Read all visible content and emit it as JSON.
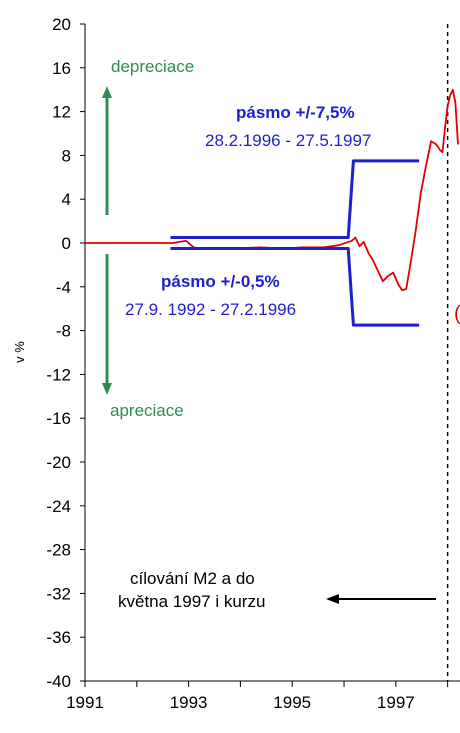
{
  "chart_data": {
    "type": "line",
    "title": "",
    "xlabel": "",
    "ylabel": "v %",
    "xlim": [
      1991,
      1998.2
    ],
    "ylim": [
      -40,
      20
    ],
    "xticks": [
      1991,
      1993,
      1995,
      1997
    ],
    "xtick_labels": [
      "1991",
      "1993",
      "1995",
      "1997"
    ],
    "yticks": [
      20,
      16,
      12,
      8,
      4,
      0,
      -4,
      -8,
      -12,
      -16,
      -20,
      -24,
      -28,
      -32,
      -36,
      -40
    ],
    "ytick_labels": [
      "20",
      "16",
      "12",
      "8",
      "4",
      "0",
      "-4",
      "-8",
      "-12",
      "-16",
      "-20",
      "-24",
      "-28",
      "-32",
      "-36",
      "-40"
    ],
    "grid": false,
    "series": [
      {
        "color": "#e00000",
        "points": [
          [
            1991.0,
            0.0
          ],
          [
            1992.7,
            0.0
          ],
          [
            1992.95,
            0.2
          ],
          [
            1993.1,
            -0.4
          ],
          [
            1993.2,
            -0.5
          ],
          [
            1993.8,
            -0.5
          ],
          [
            1994.4,
            -0.4
          ],
          [
            1994.8,
            -0.5
          ],
          [
            1995.2,
            -0.4
          ],
          [
            1995.6,
            -0.4
          ],
          [
            1995.9,
            -0.2
          ],
          [
            1996.15,
            0.2
          ],
          [
            1996.22,
            0.5
          ],
          [
            1996.3,
            -0.3
          ],
          [
            1996.38,
            0.1
          ],
          [
            1996.48,
            -1.0
          ],
          [
            1996.55,
            -1.5
          ],
          [
            1996.65,
            -2.5
          ],
          [
            1996.75,
            -3.5
          ],
          [
            1996.85,
            -3.0
          ],
          [
            1996.95,
            -2.7
          ],
          [
            1997.05,
            -3.8
          ],
          [
            1997.12,
            -4.3
          ],
          [
            1997.2,
            -4.2
          ],
          [
            1997.28,
            -2.0
          ],
          [
            1997.38,
            1.0
          ],
          [
            1997.48,
            4.5
          ],
          [
            1997.58,
            7.0
          ],
          [
            1997.68,
            9.3
          ],
          [
            1997.78,
            9.0
          ],
          [
            1997.85,
            8.5
          ],
          [
            1997.9,
            8.3
          ],
          [
            1997.95,
            10.5
          ],
          [
            1998.0,
            12.5
          ],
          [
            1998.05,
            13.5
          ],
          [
            1998.1,
            14.0
          ],
          [
            1998.15,
            12.8
          ],
          [
            1998.2,
            9.0
          ]
        ]
      },
      {
        "color": "#1f1fd0",
        "points": [
          [
            1992.65,
            0.5
          ],
          [
            1996.08,
            0.5
          ],
          [
            1996.18,
            7.5
          ],
          [
            1997.45,
            7.5
          ]
        ]
      },
      {
        "color": "#1f1fd0",
        "points": [
          [
            1992.65,
            -0.5
          ],
          [
            1996.08,
            -0.5
          ],
          [
            1996.18,
            -7.5
          ],
          [
            1997.45,
            -7.5
          ]
        ]
      }
    ],
    "vline_x": 1998.0,
    "annotations": {
      "depreciace": "depreciace",
      "apreciace": "apreciace",
      "band_wide_title": "pásmo +/-7,5%",
      "band_wide_dates": "28.2.1996 - 27.5.1997",
      "band_narrow_title": "pásmo +/-0,5%",
      "band_narrow_dates": "27.9. 1992 - 27.2.1996",
      "targeting_line1": "cílování M2 a do",
      "targeting_line2": "května 1997 i kurzu"
    }
  },
  "colors": {
    "red": "#e00000",
    "blue": "#1f1fd0",
    "green": "#2e8b57",
    "black": "#000000"
  }
}
